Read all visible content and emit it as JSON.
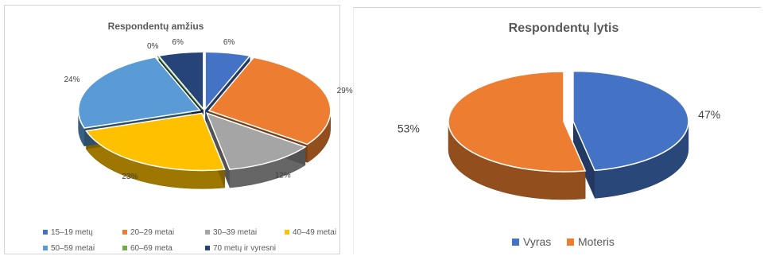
{
  "chart_data": [
    {
      "type": "pie",
      "title": "Respondentų amžius",
      "unit": "%",
      "legend_position": "bottom",
      "slices": [
        {
          "label": "15–19 metų",
          "value": 6,
          "display": "6%",
          "color": "#4472c4"
        },
        {
          "label": "20–29 metai",
          "value": 29,
          "display": "29%",
          "color": "#ed7d31"
        },
        {
          "label": "30–39 metai",
          "value": 12,
          "display": "12%",
          "color": "#a5a5a5"
        },
        {
          "label": "40–49 metai",
          "value": 23,
          "display": "23%",
          "color": "#ffc000"
        },
        {
          "label": "50–59 metai",
          "value": 24,
          "display": "24%",
          "color": "#5b9bd5"
        },
        {
          "label": "60–69 meta",
          "value": 0,
          "display": "0%",
          "color": "#70ad47"
        },
        {
          "label": "70 metų ir vyresni",
          "value": 6,
          "display": "6%",
          "color": "#264478"
        }
      ]
    },
    {
      "type": "pie",
      "title": "Respondentų lytis",
      "unit": "%",
      "legend_position": "bottom",
      "slices": [
        {
          "label": "Vyras",
          "value": 47,
          "display": "47%",
          "color": "#4472c4"
        },
        {
          "label": "Moteris",
          "value": 53,
          "display": "53%",
          "color": "#ed7d31"
        }
      ]
    }
  ]
}
